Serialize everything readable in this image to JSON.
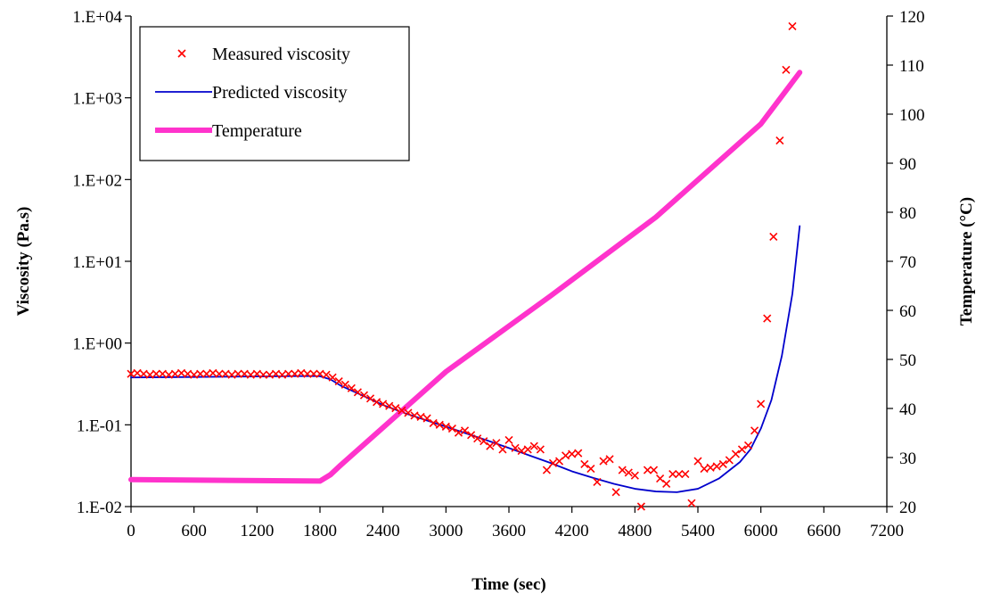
{
  "chart_data": {
    "type": "scatter",
    "xlabel": "Time (sec)",
    "ylabel_left": "Viscosity (Pa.s)",
    "ylabel_right": "Temperature (°C)",
    "xlim": [
      0,
      7200
    ],
    "x_ticks": [
      "0",
      "600",
      "1200",
      "1800",
      "2400",
      "3000",
      "3600",
      "4200",
      "4800",
      "5400",
      "6000",
      "6600",
      "7200"
    ],
    "y_left_scale": "log",
    "y_left_lim": [
      0.01,
      10000
    ],
    "y_left_ticks": [
      "1.E-02",
      "1.E-01",
      "1.E+00",
      "1.E+01",
      "1.E+02",
      "1.E+03",
      "1.E+04"
    ],
    "y_right_lim": [
      20,
      120
    ],
    "y_right_ticks": [
      "20",
      "30",
      "40",
      "50",
      "60",
      "70",
      "80",
      "90",
      "100",
      "110",
      "120"
    ],
    "grid": false,
    "legend_position": "top-left",
    "legend": [
      {
        "label": "Measured viscosity",
        "color": "#ff0000",
        "marker": "x"
      },
      {
        "label": "Predicted viscosity",
        "color": "#0000cc",
        "marker": "line"
      },
      {
        "label": "Temperature",
        "color": "#ff33cc",
        "marker": "thick-line"
      }
    ],
    "series": [
      {
        "name": "Measured viscosity",
        "axis": "left",
        "style": "markers",
        "color": "#ff0000",
        "points": [
          [
            0,
            0.42
          ],
          [
            60,
            0.43
          ],
          [
            120,
            0.42
          ],
          [
            180,
            0.41
          ],
          [
            240,
            0.42
          ],
          [
            300,
            0.42
          ],
          [
            360,
            0.41
          ],
          [
            420,
            0.42
          ],
          [
            480,
            0.43
          ],
          [
            540,
            0.42
          ],
          [
            600,
            0.41
          ],
          [
            660,
            0.42
          ],
          [
            720,
            0.42
          ],
          [
            780,
            0.43
          ],
          [
            840,
            0.42
          ],
          [
            900,
            0.42
          ],
          [
            960,
            0.41
          ],
          [
            1020,
            0.42
          ],
          [
            1080,
            0.42
          ],
          [
            1140,
            0.41
          ],
          [
            1200,
            0.42
          ],
          [
            1260,
            0.41
          ],
          [
            1320,
            0.41
          ],
          [
            1380,
            0.42
          ],
          [
            1440,
            0.41
          ],
          [
            1500,
            0.42
          ],
          [
            1560,
            0.42
          ],
          [
            1620,
            0.43
          ],
          [
            1680,
            0.42
          ],
          [
            1740,
            0.42
          ],
          [
            1800,
            0.42
          ],
          [
            1860,
            0.41
          ],
          [
            1920,
            0.38
          ],
          [
            1980,
            0.34
          ],
          [
            2040,
            0.31
          ],
          [
            2100,
            0.28
          ],
          [
            2160,
            0.25
          ],
          [
            2220,
            0.23
          ],
          [
            2280,
            0.21
          ],
          [
            2340,
            0.19
          ],
          [
            2400,
            0.18
          ],
          [
            2460,
            0.17
          ],
          [
            2520,
            0.16
          ],
          [
            2580,
            0.15
          ],
          [
            2640,
            0.14
          ],
          [
            2700,
            0.13
          ],
          [
            2760,
            0.125
          ],
          [
            2820,
            0.12
          ],
          [
            2880,
            0.105
          ],
          [
            2940,
            0.1
          ],
          [
            3000,
            0.095
          ],
          [
            3060,
            0.09
          ],
          [
            3120,
            0.08
          ],
          [
            3180,
            0.085
          ],
          [
            3240,
            0.075
          ],
          [
            3300,
            0.068
          ],
          [
            3360,
            0.063
          ],
          [
            3420,
            0.055
          ],
          [
            3480,
            0.06
          ],
          [
            3540,
            0.05
          ],
          [
            3600,
            0.065
          ],
          [
            3660,
            0.052
          ],
          [
            3720,
            0.048
          ],
          [
            3780,
            0.05
          ],
          [
            3840,
            0.055
          ],
          [
            3900,
            0.05
          ],
          [
            3960,
            0.028
          ],
          [
            4020,
            0.034
          ],
          [
            4080,
            0.036
          ],
          [
            4140,
            0.042
          ],
          [
            4200,
            0.044
          ],
          [
            4260,
            0.045
          ],
          [
            4320,
            0.033
          ],
          [
            4380,
            0.029
          ],
          [
            4440,
            0.02
          ],
          [
            4500,
            0.036
          ],
          [
            4560,
            0.038
          ],
          [
            4620,
            0.015
          ],
          [
            4680,
            0.028
          ],
          [
            4740,
            0.026
          ],
          [
            4800,
            0.024
          ],
          [
            4860,
            0.01
          ],
          [
            4920,
            0.028
          ],
          [
            4980,
            0.028
          ],
          [
            5040,
            0.022
          ],
          [
            5100,
            0.019
          ],
          [
            5160,
            0.025
          ],
          [
            5220,
            0.025
          ],
          [
            5280,
            0.025
          ],
          [
            5340,
            0.011
          ],
          [
            5400,
            0.036
          ],
          [
            5460,
            0.029
          ],
          [
            5520,
            0.03
          ],
          [
            5580,
            0.031
          ],
          [
            5640,
            0.033
          ],
          [
            5700,
            0.037
          ],
          [
            5760,
            0.044
          ],
          [
            5820,
            0.05
          ],
          [
            5880,
            0.056
          ],
          [
            5940,
            0.085
          ],
          [
            6000,
            0.18
          ],
          [
            6060,
            2.0
          ],
          [
            6120,
            20
          ],
          [
            6180,
            300
          ],
          [
            6240,
            2200
          ],
          [
            6300,
            7500
          ]
        ]
      },
      {
        "name": "Predicted viscosity",
        "axis": "left",
        "style": "line",
        "color": "#0000cc",
        "points": [
          [
            0,
            0.38
          ],
          [
            600,
            0.385
          ],
          [
            1200,
            0.39
          ],
          [
            1700,
            0.395
          ],
          [
            1800,
            0.393
          ],
          [
            1900,
            0.36
          ],
          [
            2000,
            0.3
          ],
          [
            2200,
            0.23
          ],
          [
            2400,
            0.175
          ],
          [
            2600,
            0.14
          ],
          [
            2800,
            0.115
          ],
          [
            3000,
            0.095
          ],
          [
            3200,
            0.078
          ],
          [
            3400,
            0.064
          ],
          [
            3600,
            0.052
          ],
          [
            3800,
            0.042
          ],
          [
            4000,
            0.034
          ],
          [
            4200,
            0.027
          ],
          [
            4400,
            0.0225
          ],
          [
            4600,
            0.019
          ],
          [
            4800,
            0.0165
          ],
          [
            5000,
            0.0153
          ],
          [
            5200,
            0.015
          ],
          [
            5400,
            0.0165
          ],
          [
            5600,
            0.022
          ],
          [
            5800,
            0.035
          ],
          [
            5900,
            0.05
          ],
          [
            6000,
            0.09
          ],
          [
            6100,
            0.2
          ],
          [
            6200,
            0.7
          ],
          [
            6300,
            4
          ],
          [
            6370,
            27
          ]
        ]
      },
      {
        "name": "Temperature",
        "axis": "right",
        "style": "thick-line",
        "color": "#ff33cc",
        "points": [
          [
            0,
            25.5
          ],
          [
            1800,
            25.2
          ],
          [
            1900,
            26.5
          ],
          [
            2000,
            28.5
          ],
          [
            3000,
            47.5
          ],
          [
            4000,
            63
          ],
          [
            5000,
            79
          ],
          [
            6000,
            98
          ],
          [
            6370,
            108.5
          ]
        ]
      }
    ]
  }
}
